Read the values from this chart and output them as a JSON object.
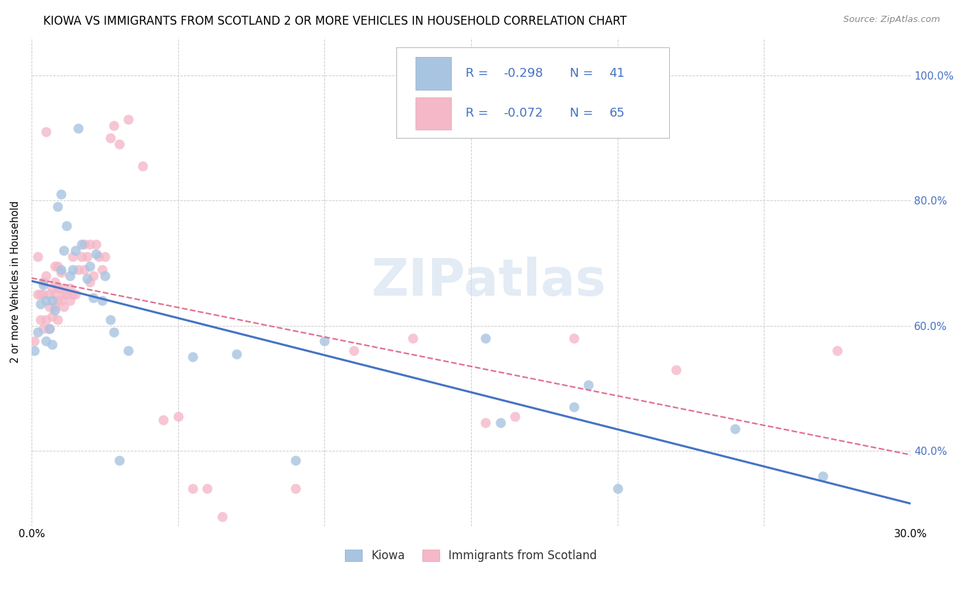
{
  "title": "KIOWA VS IMMIGRANTS FROM SCOTLAND 2 OR MORE VEHICLES IN HOUSEHOLD CORRELATION CHART",
  "source": "Source: ZipAtlas.com",
  "ylabel": "2 or more Vehicles in Household",
  "xmin": 0.0,
  "xmax": 0.3,
  "ymin": 0.28,
  "ymax": 1.06,
  "x_tick_labels": [
    "0.0%",
    "",
    "",
    "",
    "",
    "",
    "30.0%"
  ],
  "x_tick_values": [
    0.0,
    0.05,
    0.1,
    0.15,
    0.2,
    0.25,
    0.3
  ],
  "y_tick_labels": [
    "40.0%",
    "60.0%",
    "80.0%",
    "100.0%"
  ],
  "y_tick_values": [
    0.4,
    0.6,
    0.8,
    1.0
  ],
  "kiowa_color": "#a8c4e0",
  "scotland_color": "#f4b8c8",
  "kiowa_line_color": "#4472c4",
  "scotland_line_color": "#e07090",
  "kiowa_R": -0.298,
  "kiowa_N": 41,
  "scotland_R": -0.072,
  "scotland_N": 65,
  "legend_label_kiowa": "Kiowa",
  "legend_label_scotland": "Immigrants from Scotland",
  "watermark": "ZIPatlas",
  "kiowa_x": [
    0.001,
    0.002,
    0.003,
    0.004,
    0.005,
    0.005,
    0.006,
    0.007,
    0.007,
    0.008,
    0.009,
    0.01,
    0.01,
    0.011,
    0.012,
    0.013,
    0.014,
    0.015,
    0.016,
    0.017,
    0.019,
    0.02,
    0.021,
    0.022,
    0.024,
    0.025,
    0.027,
    0.028,
    0.03,
    0.033,
    0.055,
    0.07,
    0.09,
    0.1,
    0.155,
    0.16,
    0.185,
    0.19,
    0.2,
    0.24,
    0.27
  ],
  "kiowa_y": [
    0.56,
    0.59,
    0.635,
    0.665,
    0.575,
    0.64,
    0.595,
    0.64,
    0.57,
    0.625,
    0.79,
    0.81,
    0.69,
    0.72,
    0.76,
    0.68,
    0.69,
    0.72,
    0.915,
    0.73,
    0.675,
    0.695,
    0.645,
    0.715,
    0.64,
    0.68,
    0.61,
    0.59,
    0.385,
    0.56,
    0.55,
    0.555,
    0.385,
    0.575,
    0.58,
    0.445,
    0.47,
    0.505,
    0.34,
    0.435,
    0.36
  ],
  "scotland_x": [
    0.001,
    0.002,
    0.002,
    0.003,
    0.003,
    0.004,
    0.004,
    0.004,
    0.005,
    0.005,
    0.005,
    0.006,
    0.006,
    0.006,
    0.007,
    0.007,
    0.008,
    0.008,
    0.008,
    0.008,
    0.009,
    0.009,
    0.009,
    0.009,
    0.01,
    0.01,
    0.01,
    0.011,
    0.011,
    0.012,
    0.013,
    0.013,
    0.014,
    0.014,
    0.015,
    0.016,
    0.017,
    0.018,
    0.018,
    0.019,
    0.02,
    0.02,
    0.021,
    0.022,
    0.023,
    0.024,
    0.025,
    0.027,
    0.028,
    0.03,
    0.033,
    0.038,
    0.045,
    0.05,
    0.055,
    0.06,
    0.065,
    0.09,
    0.11,
    0.13,
    0.155,
    0.165,
    0.185,
    0.22,
    0.275
  ],
  "scotland_y": [
    0.575,
    0.65,
    0.71,
    0.61,
    0.65,
    0.595,
    0.65,
    0.67,
    0.61,
    0.68,
    0.91,
    0.595,
    0.63,
    0.65,
    0.615,
    0.66,
    0.63,
    0.65,
    0.67,
    0.695,
    0.61,
    0.64,
    0.66,
    0.695,
    0.64,
    0.66,
    0.685,
    0.63,
    0.65,
    0.65,
    0.64,
    0.66,
    0.65,
    0.71,
    0.65,
    0.69,
    0.71,
    0.69,
    0.73,
    0.71,
    0.67,
    0.73,
    0.68,
    0.73,
    0.71,
    0.69,
    0.71,
    0.9,
    0.92,
    0.89,
    0.93,
    0.855,
    0.45,
    0.455,
    0.34,
    0.34,
    0.295,
    0.34,
    0.56,
    0.58,
    0.445,
    0.455,
    0.58,
    0.53,
    0.56
  ],
  "background_color": "#ffffff",
  "grid_color": "#cccccc",
  "title_fontsize": 12,
  "axis_label_color": "#4472c4",
  "legend_text_color": "#4472c4"
}
